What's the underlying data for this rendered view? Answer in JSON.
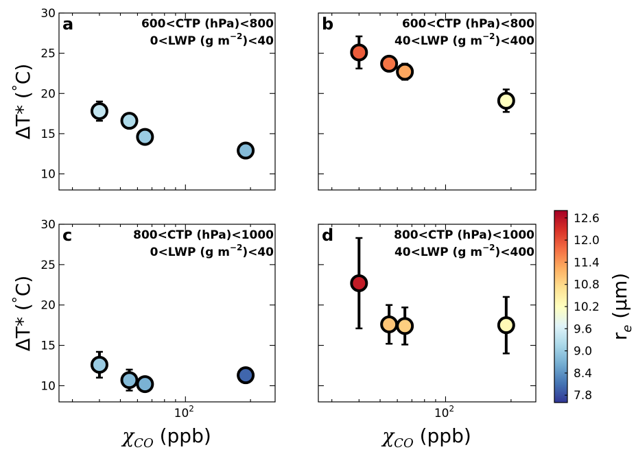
{
  "chart_data": [
    {
      "panel": "a",
      "type": "scatter",
      "annotation": [
        "600<CTP (hPa)<800",
        "0<LWP (g m-2)<40"
      ],
      "annotation_parts": {
        "l1": "600<CTP (hPa)<800",
        "l2a": "0<LWP (g m",
        "l2sup": "−2",
        "l2b": ")<40"
      },
      "ylim": [
        8,
        30
      ],
      "yticks": [
        10,
        15,
        20,
        25,
        30
      ],
      "ylabel": "ΔT* (°C)",
      "points": [
        {
          "x": 40,
          "y": 17.8,
          "err": 1.2,
          "re": 9.4
        },
        {
          "x": 55,
          "y": 16.6,
          "err": 0.0,
          "re": 9.2
        },
        {
          "x": 65,
          "y": 14.6,
          "err": 0.0,
          "re": 9.0
        },
        {
          "x": 190,
          "y": 12.9,
          "err": 0.0,
          "re": 8.8
        }
      ]
    },
    {
      "panel": "b",
      "type": "scatter",
      "annotation": [
        "600<CTP (hPa)<800",
        "40<LWP (g m-2)<400"
      ],
      "annotation_parts": {
        "l1": "600<CTP (hPa)<800",
        "l2a": "40<LWP (g m",
        "l2sup": "−2",
        "l2b": ")<400"
      },
      "ylim": [
        8,
        30
      ],
      "yticks": [
        10,
        15,
        20,
        25,
        30
      ],
      "points": [
        {
          "x": 40,
          "y": 25.1,
          "err": 2.0,
          "re": 11.9
        },
        {
          "x": 55,
          "y": 23.7,
          "err": 0.0,
          "re": 11.7
        },
        {
          "x": 65,
          "y": 22.7,
          "err": 1.0,
          "re": 11.3
        },
        {
          "x": 190,
          "y": 19.1,
          "err": 1.4,
          "re": 10.2
        }
      ]
    },
    {
      "panel": "c",
      "type": "scatter",
      "annotation": [
        "800<CTP (hPa)<1000",
        "0<LWP (g m-2)<40"
      ],
      "annotation_parts": {
        "l1": "800<CTP (hPa)<1000",
        "l2a": "0<LWP (g m",
        "l2sup": "−2",
        "l2b": ")<40"
      },
      "ylim": [
        8,
        30
      ],
      "yticks": [
        10,
        15,
        20,
        25,
        30
      ],
      "ylabel": "ΔT* (°C)",
      "xlabel": "χCO (ppb)",
      "points": [
        {
          "x": 40,
          "y": 12.6,
          "err": 1.6,
          "re": 9.0
        },
        {
          "x": 55,
          "y": 10.7,
          "err": 1.3,
          "re": 8.8
        },
        {
          "x": 65,
          "y": 10.2,
          "err": 0.0,
          "re": 8.7
        },
        {
          "x": 190,
          "y": 11.3,
          "err": 0.0,
          "re": 8.0
        }
      ]
    },
    {
      "panel": "d",
      "type": "scatter",
      "annotation": [
        "800<CTP (hPa)<1000",
        "40<LWP (g m-2)<400"
      ],
      "annotation_parts": {
        "l1": "800<CTP (hPa)<1000",
        "l2a": "40<LWP (g m",
        "l2sup": "−2",
        "l2b": ")<400"
      },
      "ylim": [
        8,
        30
      ],
      "yticks": [
        10,
        15,
        20,
        25,
        30
      ],
      "xlabel": "χCO (ppb)",
      "points": [
        {
          "x": 40,
          "y": 22.7,
          "err": 5.6,
          "re": 12.5
        },
        {
          "x": 55,
          "y": 17.6,
          "err": 2.4,
          "re": 11.0
        },
        {
          "x": 65,
          "y": 17.4,
          "err": 2.3,
          "re": 10.9
        },
        {
          "x": 190,
          "y": 17.5,
          "err": 3.5,
          "re": 10.3
        }
      ]
    }
  ],
  "x_axis": {
    "scale": "log",
    "range": [
      26,
      260
    ],
    "label_chi": "χ",
    "label_sub": "CO",
    "label_unit": " (ppb)",
    "tick_base": "10",
    "tick_exp": "2"
  },
  "y_axis": {
    "label_delta": "ΔT* (",
    "label_deg": "°",
    "label_unit": "C)"
  },
  "colorbar": {
    "range": [
      7.6,
      12.8
    ],
    "ticks": [
      "12.6",
      "12.0",
      "11.4",
      "10.8",
      "10.2",
      "9.6",
      "9.0",
      "8.4",
      "7.8"
    ],
    "label_r": "r",
    "label_e": "e",
    "label_unit": " (μm)",
    "colormap": "RdYlBu_r"
  },
  "panel_tags": [
    "a",
    "b",
    "c",
    "d"
  ]
}
